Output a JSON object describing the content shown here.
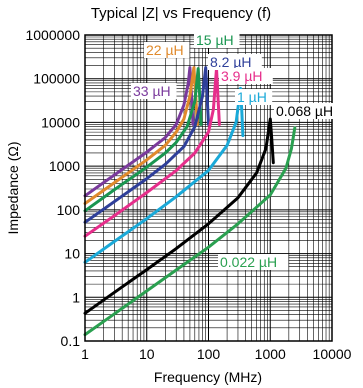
{
  "chart_data": {
    "type": "line",
    "title": "Typical |Z| vs Frequency (f)",
    "xlabel": "Frequency (MHz)",
    "ylabel": "Impedance (Ω)",
    "xscale": "log",
    "yscale": "log",
    "xlim": [
      1,
      10000
    ],
    "ylim": [
      0.1,
      1000000
    ],
    "grid": true,
    "x_tick_labels": [
      "1",
      "10",
      "100",
      "1000",
      "10000"
    ],
    "y_tick_labels": [
      "0.1",
      "1",
      "10",
      "100",
      "1000",
      "10000",
      "100000",
      "1000000"
    ],
    "series": [
      {
        "name": "33 µH",
        "color": "#7a3a9c",
        "points": [
          [
            1,
            210
          ],
          [
            3,
            630
          ],
          [
            10,
            2100
          ],
          [
            20,
            4500
          ],
          [
            30,
            9000
          ],
          [
            40,
            25000
          ],
          [
            47,
            80000
          ],
          [
            50,
            180000
          ],
          [
            53,
            40000
          ],
          [
            56,
            9000
          ]
        ]
      },
      {
        "name": "22 µH",
        "color": "#e08a2c",
        "points": [
          [
            1,
            140
          ],
          [
            3,
            420
          ],
          [
            10,
            1400
          ],
          [
            20,
            3000
          ],
          [
            30,
            6000
          ],
          [
            40,
            12000
          ],
          [
            50,
            40000
          ],
          [
            58,
            180000
          ],
          [
            62,
            40000
          ],
          [
            66,
            9000
          ]
        ]
      },
      {
        "name": "15 µH",
        "color": "#1a9650",
        "points": [
          [
            1,
            95
          ],
          [
            3,
            290
          ],
          [
            10,
            950
          ],
          [
            20,
            2000
          ],
          [
            30,
            3500
          ],
          [
            45,
            8000
          ],
          [
            60,
            30000
          ],
          [
            68,
            170000
          ],
          [
            72,
            40000
          ],
          [
            76,
            9000
          ]
        ]
      },
      {
        "name": "8.2 µH",
        "color": "#2e3f9a",
        "points": [
          [
            1,
            52
          ],
          [
            3,
            155
          ],
          [
            10,
            520
          ],
          [
            20,
            1100
          ],
          [
            40,
            2800
          ],
          [
            60,
            8000
          ],
          [
            80,
            40000
          ],
          [
            90,
            180000
          ],
          [
            95,
            40000
          ],
          [
            100,
            9000
          ]
        ]
      },
      {
        "name": "3.9 µH",
        "color": "#e62e8b",
        "points": [
          [
            1,
            25
          ],
          [
            3,
            74
          ],
          [
            10,
            250
          ],
          [
            30,
            790
          ],
          [
            60,
            2000
          ],
          [
            100,
            6000
          ],
          [
            120,
            20000
          ],
          [
            135,
            170000
          ],
          [
            142,
            40000
          ],
          [
            150,
            9000
          ]
        ]
      },
      {
        "name": "1 µH",
        "color": "#1aa9d8",
        "points": [
          [
            1,
            6.3
          ],
          [
            3,
            19
          ],
          [
            10,
            63
          ],
          [
            30,
            200
          ],
          [
            100,
            800
          ],
          [
            200,
            3000
          ],
          [
            280,
            10000
          ],
          [
            330,
            60000
          ],
          [
            345,
            20000
          ],
          [
            360,
            5000
          ]
        ]
      },
      {
        "name": "0.068 µH",
        "color": "#000000",
        "points": [
          [
            1,
            0.43
          ],
          [
            3,
            1.3
          ],
          [
            10,
            4.3
          ],
          [
            30,
            13
          ],
          [
            100,
            48
          ],
          [
            300,
            190
          ],
          [
            600,
            700
          ],
          [
            850,
            2500
          ],
          [
            1000,
            12000
          ],
          [
            1060,
            4000
          ],
          [
            1120,
            1200
          ]
        ]
      },
      {
        "name": "0.022 µH",
        "color": "#2aa050",
        "points": [
          [
            1,
            0.14
          ],
          [
            3,
            0.42
          ],
          [
            10,
            1.4
          ],
          [
            30,
            4.2
          ],
          [
            100,
            14
          ],
          [
            300,
            48
          ],
          [
            1000,
            220
          ],
          [
            1800,
            900
          ],
          [
            2200,
            2500
          ],
          [
            2500,
            7500
          ]
        ]
      }
    ]
  }
}
